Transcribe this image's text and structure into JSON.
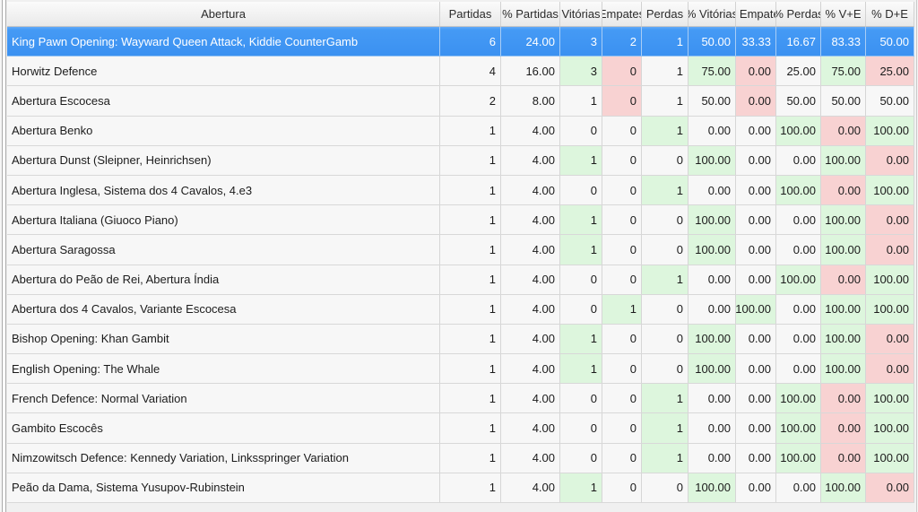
{
  "colors": {
    "selected_row_bg": "#3B91F1",
    "selected_row_text": "#FFFFFF",
    "positive_cell_bg": "#DDF6DD",
    "negative_cell_bg": "#F8D2D2",
    "row_bg": "#F7F7F7",
    "header_bg": "#EFEFEF",
    "grid_border": "#D6D6D6"
  },
  "table": {
    "columns": [
      {
        "id": "abertura",
        "label": "Abertura"
      },
      {
        "id": "partidas",
        "label": "Partidas"
      },
      {
        "id": "pct-partidas",
        "label": "% Partidas"
      },
      {
        "id": "vitorias",
        "label": "Vitórias"
      },
      {
        "id": "empates",
        "label": "Empates"
      },
      {
        "id": "perdas",
        "label": "Perdas"
      },
      {
        "id": "pct-vitorias",
        "label": "% Vitórias"
      },
      {
        "id": "pct-empates",
        "label": "% Empates"
      },
      {
        "id": "pct-perdas",
        "label": "% Perdas"
      },
      {
        "id": "pct-v-e",
        "label": "% V+E"
      },
      {
        "id": "pct-d-e",
        "label": "% D+E"
      }
    ],
    "rows": [
      {
        "abertura": "King Pawn Opening: Wayward Queen Attack, Kiddie CounterGamb",
        "selected": true,
        "values": [
          "6",
          "24.00",
          "3",
          "2",
          "1",
          "50.00",
          "33.33",
          "16.67",
          "83.33",
          "50.00"
        ],
        "highlights": [
          "",
          "",
          "",
          "",
          "",
          "",
          "",
          "",
          "",
          ""
        ]
      },
      {
        "abertura": "Horwitz Defence",
        "selected": false,
        "values": [
          "4",
          "16.00",
          "3",
          "0",
          "1",
          "75.00",
          "0.00",
          "25.00",
          "75.00",
          "25.00"
        ],
        "highlights": [
          "",
          "",
          "green",
          "red",
          "",
          "green",
          "red",
          "",
          "green",
          "red"
        ]
      },
      {
        "abertura": "Abertura Escocesa",
        "selected": false,
        "values": [
          "2",
          "8.00",
          "1",
          "0",
          "1",
          "50.00",
          "0.00",
          "50.00",
          "50.00",
          "50.00"
        ],
        "highlights": [
          "",
          "",
          "",
          "red",
          "",
          "",
          "red",
          "",
          "",
          ""
        ]
      },
      {
        "abertura": "Abertura Benko",
        "selected": false,
        "values": [
          "1",
          "4.00",
          "0",
          "0",
          "1",
          "0.00",
          "0.00",
          "100.00",
          "0.00",
          "100.00"
        ],
        "highlights": [
          "",
          "",
          "",
          "",
          "green",
          "",
          "",
          "green",
          "red",
          "green"
        ]
      },
      {
        "abertura": "Abertura Dunst (Sleipner, Heinrichsen)",
        "selected": false,
        "values": [
          "1",
          "4.00",
          "1",
          "0",
          "0",
          "100.00",
          "0.00",
          "0.00",
          "100.00",
          "0.00"
        ],
        "highlights": [
          "",
          "",
          "green",
          "",
          "",
          "green",
          "",
          "",
          "green",
          "red"
        ]
      },
      {
        "abertura": "Abertura Inglesa, Sistema dos 4 Cavalos, 4.e3",
        "selected": false,
        "values": [
          "1",
          "4.00",
          "0",
          "0",
          "1",
          "0.00",
          "0.00",
          "100.00",
          "0.00",
          "100.00"
        ],
        "highlights": [
          "",
          "",
          "",
          "",
          "green",
          "",
          "",
          "green",
          "red",
          "green"
        ]
      },
      {
        "abertura": "Abertura Italiana (Giuoco Piano)",
        "selected": false,
        "values": [
          "1",
          "4.00",
          "1",
          "0",
          "0",
          "100.00",
          "0.00",
          "0.00",
          "100.00",
          "0.00"
        ],
        "highlights": [
          "",
          "",
          "green",
          "",
          "",
          "green",
          "",
          "",
          "green",
          "red"
        ]
      },
      {
        "abertura": "Abertura Saragossa",
        "selected": false,
        "values": [
          "1",
          "4.00",
          "1",
          "0",
          "0",
          "100.00",
          "0.00",
          "0.00",
          "100.00",
          "0.00"
        ],
        "highlights": [
          "",
          "",
          "green",
          "",
          "",
          "green",
          "",
          "",
          "green",
          "red"
        ]
      },
      {
        "abertura": "Abertura do Peão de Rei, Abertura Índia",
        "selected": false,
        "values": [
          "1",
          "4.00",
          "0",
          "0",
          "1",
          "0.00",
          "0.00",
          "100.00",
          "0.00",
          "100.00"
        ],
        "highlights": [
          "",
          "",
          "",
          "",
          "green",
          "",
          "",
          "green",
          "red",
          "green"
        ]
      },
      {
        "abertura": "Abertura dos 4 Cavalos, Variante Escocesa",
        "selected": false,
        "values": [
          "1",
          "4.00",
          "0",
          "1",
          "0",
          "0.00",
          "100.00",
          "0.00",
          "100.00",
          "100.00"
        ],
        "highlights": [
          "",
          "",
          "",
          "green",
          "",
          "",
          "green",
          "",
          "green",
          "green"
        ]
      },
      {
        "abertura": "Bishop Opening: Khan Gambit",
        "selected": false,
        "values": [
          "1",
          "4.00",
          "1",
          "0",
          "0",
          "100.00",
          "0.00",
          "0.00",
          "100.00",
          "0.00"
        ],
        "highlights": [
          "",
          "",
          "green",
          "",
          "",
          "green",
          "",
          "",
          "green",
          "red"
        ]
      },
      {
        "abertura": "English Opening: The Whale",
        "selected": false,
        "values": [
          "1",
          "4.00",
          "1",
          "0",
          "0",
          "100.00",
          "0.00",
          "0.00",
          "100.00",
          "0.00"
        ],
        "highlights": [
          "",
          "",
          "green",
          "",
          "",
          "green",
          "",
          "",
          "green",
          "red"
        ]
      },
      {
        "abertura": "French Defence: Normal Variation",
        "selected": false,
        "values": [
          "1",
          "4.00",
          "0",
          "0",
          "1",
          "0.00",
          "0.00",
          "100.00",
          "0.00",
          "100.00"
        ],
        "highlights": [
          "",
          "",
          "",
          "",
          "green",
          "",
          "",
          "green",
          "red",
          "green"
        ]
      },
      {
        "abertura": "Gambito Escocês",
        "selected": false,
        "values": [
          "1",
          "4.00",
          "0",
          "0",
          "1",
          "0.00",
          "0.00",
          "100.00",
          "0.00",
          "100.00"
        ],
        "highlights": [
          "",
          "",
          "",
          "",
          "green",
          "",
          "",
          "green",
          "red",
          "green"
        ]
      },
      {
        "abertura": "Nimzowitsch Defence: Kennedy Variation, Linksspringer Variation",
        "selected": false,
        "values": [
          "1",
          "4.00",
          "0",
          "0",
          "1",
          "0.00",
          "0.00",
          "100.00",
          "0.00",
          "100.00"
        ],
        "highlights": [
          "",
          "",
          "",
          "",
          "green",
          "",
          "",
          "green",
          "red",
          "green"
        ]
      },
      {
        "abertura": "Peão da Dama, Sistema Yusupov-Rubinstein",
        "selected": false,
        "values": [
          "1",
          "4.00",
          "1",
          "0",
          "0",
          "100.00",
          "0.00",
          "0.00",
          "100.00",
          "0.00"
        ],
        "highlights": [
          "",
          "",
          "green",
          "",
          "",
          "green",
          "",
          "",
          "green",
          "red"
        ]
      }
    ]
  }
}
